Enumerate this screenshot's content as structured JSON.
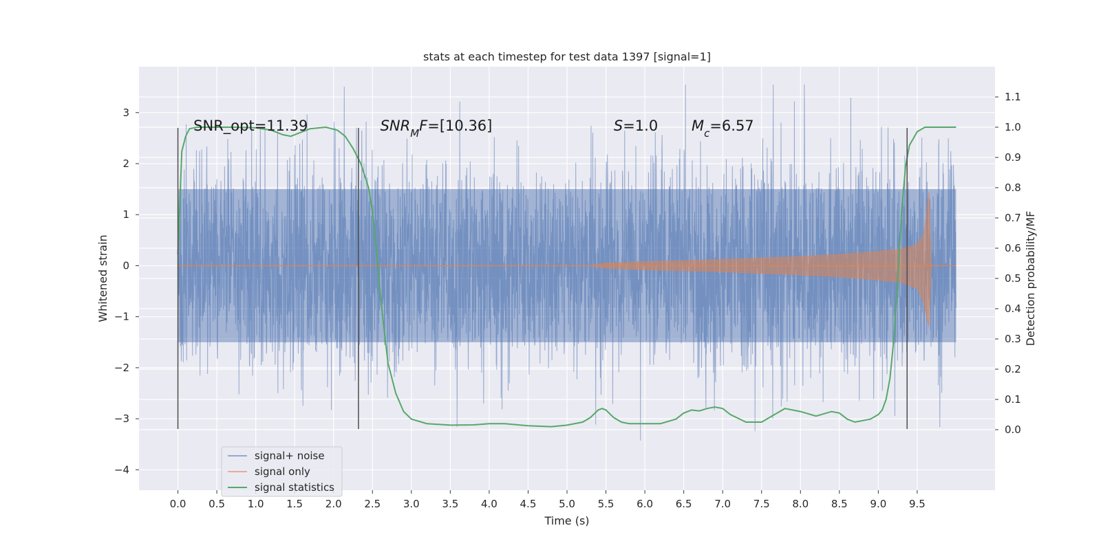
{
  "chart_data": {
    "type": "line",
    "title": "stats at each timestep for test data 1397 [signal=1]",
    "xlabel": "Time (s)",
    "ylabel": "Whitened strain",
    "ylabel_right": "Detection probability/MF",
    "xlim": [
      -0.5,
      10.5
    ],
    "ylim": [
      -4.4,
      3.9
    ],
    "ylim_right": [
      -0.2,
      1.2
    ],
    "x_ticks": [
      0.0,
      0.5,
      1.0,
      1.5,
      2.0,
      2.5,
      3.0,
      3.5,
      4.0,
      4.5,
      5.0,
      5.5,
      6.0,
      6.5,
      7.0,
      7.5,
      8.0,
      8.5,
      9.0,
      9.5
    ],
    "x_tick_labels": [
      "0.0",
      "0.5",
      "1.0",
      "1.5",
      "2.0",
      "2.5",
      "3.0",
      "3.5",
      "4.0",
      "4.5",
      "5.0",
      "5.5",
      "6.0",
      "6.5",
      "7.0",
      "7.5",
      "8.0",
      "8.5",
      "9.0",
      "9.5"
    ],
    "y_ticks": [
      3,
      2,
      1,
      0,
      -1,
      -2,
      -3,
      -4
    ],
    "y_tick_labels": [
      "3",
      "2",
      "1",
      "0",
      "−1",
      "−2",
      "−3",
      "−4"
    ],
    "y2_ticks": [
      1.1,
      1.0,
      0.9,
      0.8,
      0.7,
      0.6,
      0.5,
      0.4,
      0.3,
      0.2,
      0.1,
      0.0
    ],
    "y2_tick_labels": [
      "1.1",
      "1.0",
      "0.9",
      "0.8",
      "0.7",
      "0.6",
      "0.5",
      "0.4",
      "0.3",
      "0.2",
      "0.1",
      "0.0"
    ],
    "grid": true,
    "legend_position": "lower-left",
    "annotations": [
      {
        "parts": [
          {
            "text": "SNR_opt=11.39",
            "italic": false
          }
        ],
        "x": 0.2,
        "y": 2.65
      },
      {
        "parts": [
          {
            "text": "SNR",
            "italic": true
          },
          {
            "text": "M",
            "italic": true,
            "sub": true
          },
          {
            "text": "F",
            "italic": true
          },
          {
            "text": "=[10.36]",
            "italic": false
          }
        ],
        "x": 2.6,
        "y": 2.65
      },
      {
        "parts": [
          {
            "text": "S",
            "italic": true
          },
          {
            "text": "=1.0",
            "italic": false
          }
        ],
        "x": 5.6,
        "y": 2.65
      },
      {
        "parts": [
          {
            "text": "M",
            "italic": true
          },
          {
            "text": "c",
            "italic": true,
            "sub": true
          },
          {
            "text": "=6.57",
            "italic": false
          }
        ],
        "x": 6.6,
        "y": 2.65
      }
    ],
    "vertical_markers": [
      {
        "x": 0.0,
        "y0": -3.2,
        "y1": 2.7
      },
      {
        "x": 2.32,
        "y0": -3.2,
        "y1": 2.7
      },
      {
        "x": 9.37,
        "y0": -3.2,
        "y1": 2.7
      }
    ],
    "series": [
      {
        "name": "signal+ noise",
        "axis": "left",
        "color": "#4c72b0",
        "x_range": [
          0.0,
          10.0
        ],
        "envelope_inner": 1.5,
        "envelope_outer": 2.4,
        "max_abs": 3.55
      },
      {
        "name": "signal only",
        "axis": "left",
        "color": "#dd8452",
        "x": [
          0.0,
          5.3,
          5.5,
          6.0,
          6.5,
          7.0,
          7.5,
          8.0,
          8.5,
          9.0,
          9.3,
          9.5,
          9.58,
          9.62,
          9.65,
          9.68,
          10.0
        ],
        "envelope": [
          0.0,
          0.0,
          0.05,
          0.08,
          0.1,
          0.12,
          0.15,
          0.18,
          0.22,
          0.28,
          0.33,
          0.42,
          0.6,
          1.0,
          1.45,
          0.0,
          0.0
        ],
        "envelope_lower": [
          0.0,
          0.0,
          0.05,
          0.08,
          0.1,
          0.12,
          0.15,
          0.18,
          0.22,
          0.28,
          0.33,
          0.45,
          0.7,
          1.0,
          1.2,
          0.0,
          0.0
        ]
      },
      {
        "name": "signal statistics",
        "axis": "right",
        "color": "#55a868",
        "x": [
          0.0,
          0.05,
          0.1,
          0.15,
          0.25,
          0.4,
          0.7,
          1.0,
          1.2,
          1.35,
          1.45,
          1.55,
          1.7,
          1.9,
          2.05,
          2.15,
          2.25,
          2.35,
          2.45,
          2.5,
          2.55,
          2.6,
          2.65,
          2.7,
          2.8,
          2.9,
          3.0,
          3.2,
          3.5,
          3.8,
          4.0,
          4.2,
          4.5,
          4.8,
          5.0,
          5.2,
          5.3,
          5.4,
          5.45,
          5.5,
          5.6,
          5.7,
          5.8,
          6.0,
          6.2,
          6.4,
          6.5,
          6.6,
          6.7,
          6.8,
          6.9,
          7.0,
          7.1,
          7.3,
          7.5,
          7.7,
          7.8,
          8.0,
          8.2,
          8.4,
          8.5,
          8.6,
          8.7,
          8.9,
          9.0,
          9.05,
          9.1,
          9.15,
          9.2,
          9.25,
          9.3,
          9.35,
          9.4,
          9.5,
          9.6,
          9.8,
          10.0
        ],
        "values": [
          0.58,
          0.92,
          0.97,
          0.995,
          1.0,
          1.0,
          1.0,
          0.998,
          0.99,
          0.975,
          0.97,
          0.98,
          0.995,
          1.0,
          0.99,
          0.97,
          0.93,
          0.88,
          0.8,
          0.72,
          0.6,
          0.45,
          0.33,
          0.22,
          0.12,
          0.06,
          0.035,
          0.02,
          0.015,
          0.016,
          0.02,
          0.02,
          0.013,
          0.01,
          0.015,
          0.025,
          0.04,
          0.065,
          0.07,
          0.065,
          0.04,
          0.025,
          0.02,
          0.02,
          0.02,
          0.035,
          0.055,
          0.065,
          0.062,
          0.07,
          0.075,
          0.07,
          0.05,
          0.025,
          0.025,
          0.055,
          0.07,
          0.06,
          0.045,
          0.06,
          0.055,
          0.035,
          0.025,
          0.035,
          0.05,
          0.065,
          0.1,
          0.17,
          0.3,
          0.5,
          0.72,
          0.87,
          0.94,
          0.985,
          1.0,
          1.0,
          1.0
        ]
      }
    ]
  }
}
